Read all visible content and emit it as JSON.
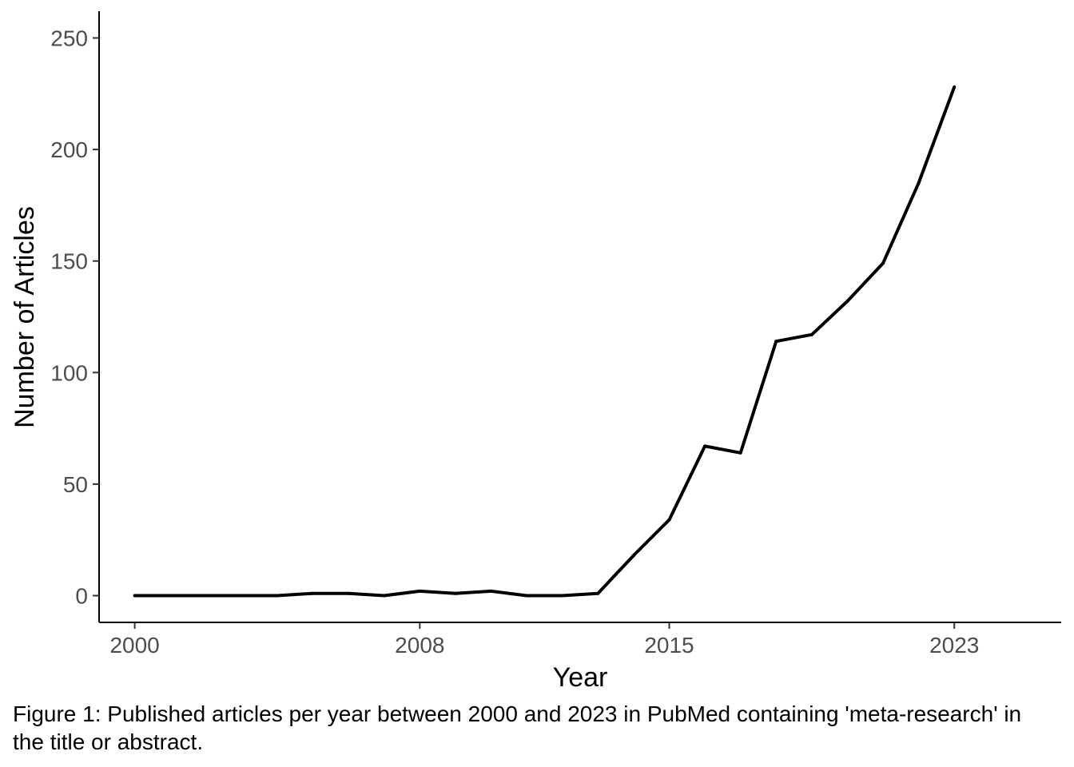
{
  "chart_data": {
    "type": "line",
    "xlabel": "Year",
    "ylabel": "Number of Articles",
    "x_ticks": [
      2000,
      2008,
      2015,
      2023
    ],
    "y_ticks": [
      0,
      50,
      100,
      150,
      200,
      250
    ],
    "xlim": [
      1999,
      2026
    ],
    "ylim": [
      -12,
      262
    ],
    "grid": false,
    "line_color": "#000000",
    "series": [
      {
        "x": [
          2000,
          2001,
          2002,
          2003,
          2004,
          2005,
          2006,
          2007,
          2008,
          2009,
          2010,
          2011,
          2012,
          2013,
          2014,
          2015,
          2016,
          2017,
          2018,
          2019,
          2020,
          2021,
          2022,
          2023
        ],
        "values": [
          0,
          0,
          0,
          0,
          0,
          1,
          1,
          0,
          2,
          1,
          2,
          0,
          0,
          1,
          18,
          34,
          67,
          64,
          114,
          117,
          132,
          149,
          185,
          228
        ]
      }
    ]
  },
  "caption": "Figure 1: Published articles per year between 2000 and 2023 in PubMed containing 'meta-research' in the title or abstract."
}
